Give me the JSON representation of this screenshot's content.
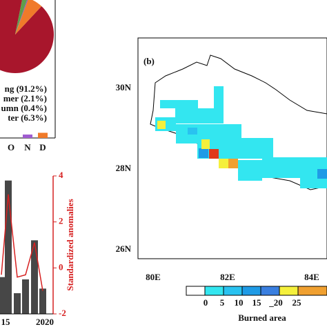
{
  "chart_data": [
    {
      "type": "pie",
      "categories": [
        "ng",
        "mer",
        "umn",
        "ter"
      ],
      "values": [
        91.2,
        2.1,
        0.4,
        6.3
      ],
      "value_labels": [
        "(91.2%)",
        "(2.1%)",
        "(0.4%)",
        "(6.3%)"
      ],
      "colors": [
        "#a8162c",
        "#5d9e4a",
        "#8e5bb5",
        "#f07a2a"
      ]
    },
    {
      "type": "bar",
      "categories": [
        "O",
        "N",
        "D"
      ],
      "values": [
        0,
        1,
        1.5
      ],
      "colors": [
        "#8e5bb5",
        "#a05cd0",
        "#f07a2a"
      ],
      "ylim": [
        0,
        40
      ]
    },
    {
      "type": "bar",
      "categories": [
        null,
        "15",
        null,
        null,
        null,
        "2020"
      ],
      "values": [
        -0.4,
        3.8,
        -1.1,
        -0.5,
        1.2,
        -0.9
      ],
      "color": "#474747",
      "y2lim": [
        -2,
        4
      ],
      "y2ticks": [
        4,
        2,
        0,
        -2
      ],
      "y2label": "Standardized anomalies",
      "series": [
        {
          "name": "anomaly",
          "color": "#d62020",
          "axis": "y2",
          "values": [
            -0.3,
            3.2,
            -0.4,
            -0.3,
            1.1,
            -1
          ]
        }
      ]
    }
  ],
  "map": {
    "panel": "(b)",
    "lat_labels": [
      "30N",
      "28N",
      "26N"
    ],
    "lon_labels": [
      "80E",
      "82E",
      "84E"
    ],
    "colorbar_labels": [
      "0",
      "5",
      "10",
      "15",
      "_20",
      "25"
    ],
    "colorbar_title": "Burned area"
  }
}
